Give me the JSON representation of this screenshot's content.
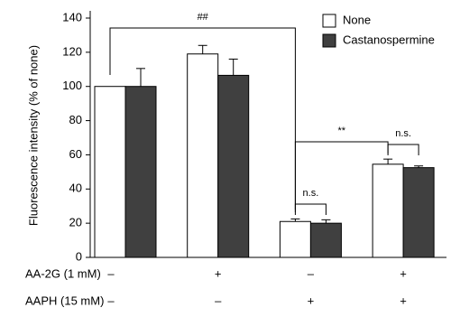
{
  "chart_data": {
    "type": "bar",
    "y_label": "Fluorescence intensity (% of none)",
    "categories": [
      null,
      null,
      null,
      null
    ],
    "series": [
      {
        "name": "None",
        "color": "#ffffff",
        "values": [
          100,
          119,
          21,
          54.5
        ],
        "errors": [
          0,
          5,
          1.5,
          3
        ]
      },
      {
        "name": "Castanospermine",
        "color": "#404040",
        "values": [
          100,
          106.5,
          20,
          52.5
        ],
        "errors": [
          10.5,
          9.5,
          2,
          1
        ]
      }
    ],
    "ylim": [
      0,
      140
    ],
    "yticks": [
      0,
      20,
      40,
      60,
      80,
      100,
      120,
      140
    ],
    "legend": "upper right",
    "annotations": [
      {
        "text": "##"
      },
      {
        "text": "**"
      },
      {
        "text": "n.s."
      },
      {
        "text": "n.s."
      }
    ],
    "rows": [
      {
        "label": "AA-2G (1 mM)",
        "values": [
          "–",
          "+",
          "–",
          "+"
        ]
      },
      {
        "label": "AAPH (15 mM)",
        "values": [
          "–",
          "–",
          "+",
          "+"
        ]
      }
    ]
  }
}
